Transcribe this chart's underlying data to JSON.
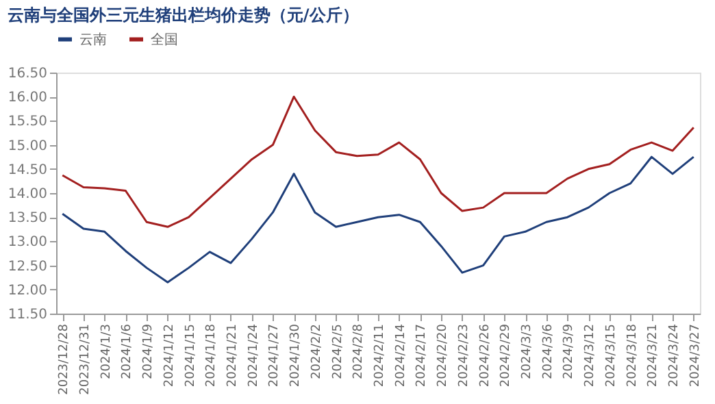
{
  "chart_data": {
    "type": "line",
    "title": "云南与全国外三元生猪出栏均价走势（元/公斤）",
    "categories": [
      "2023/12/28",
      "2023/12/31",
      "2024/1/3",
      "2024/1/6",
      "2024/1/9",
      "2024/1/12",
      "2024/1/15",
      "2024/1/18",
      "2024/1/21",
      "2024/1/24",
      "2024/1/27",
      "2024/1/30",
      "2024/2/2",
      "2024/2/5",
      "2024/2/8",
      "2024/2/11",
      "2024/2/14",
      "2024/2/17",
      "2024/2/20",
      "2024/2/23",
      "2024/2/26",
      "2024/2/29",
      "2024/3/3",
      "2024/3/6",
      "2024/3/9",
      "2024/3/12",
      "2024/3/15",
      "2024/3/18",
      "2024/3/21",
      "2024/3/24",
      "2024/3/27"
    ],
    "series": [
      {
        "name": "云南",
        "color": "#1f3f7a",
        "values": [
          13.57,
          13.26,
          13.2,
          12.8,
          12.45,
          12.15,
          12.45,
          12.78,
          12.55,
          13.05,
          13.6,
          14.4,
          13.6,
          13.3,
          13.4,
          13.5,
          13.55,
          13.4,
          12.9,
          12.35,
          12.5,
          13.1,
          13.2,
          13.4,
          13.5,
          13.7,
          14.0,
          14.2,
          14.75,
          14.4,
          14.75
        ]
      },
      {
        "name": "全国",
        "color": "#a31f1f",
        "values": [
          14.37,
          14.12,
          14.1,
          14.05,
          13.4,
          13.3,
          13.5,
          13.9,
          14.3,
          14.7,
          15.0,
          16.0,
          15.3,
          14.85,
          14.77,
          14.8,
          15.05,
          14.7,
          14.0,
          13.63,
          13.7,
          14.0,
          14.0,
          14.0,
          14.3,
          14.5,
          14.6,
          14.9,
          15.05,
          14.88,
          15.36
        ]
      }
    ],
    "ylim": [
      11.5,
      16.5
    ],
    "yticks": [
      {
        "value": 11.5,
        "label": "11.50"
      },
      {
        "value": 12,
        "label": "12.00"
      },
      {
        "value": 12.5,
        "label": "12.50"
      },
      {
        "value": 13,
        "label": "13.00"
      },
      {
        "value": 13.5,
        "label": "13.50"
      },
      {
        "value": 14,
        "label": "14.00"
      },
      {
        "value": 14.5,
        "label": "14.50"
      },
      {
        "value": 15,
        "label": "15.00"
      },
      {
        "value": 15.5,
        "label": "15.50"
      },
      {
        "value": 16,
        "label": "16.00"
      },
      {
        "value": 16.5,
        "label": "16.50"
      }
    ],
    "grid": false,
    "legend": "top",
    "marker": "none",
    "line_style": "solid"
  }
}
